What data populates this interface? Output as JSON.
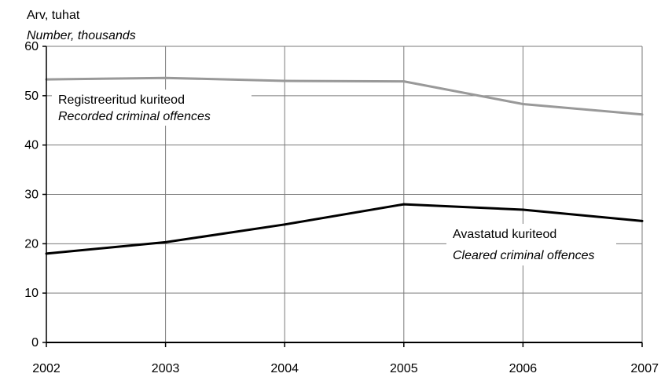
{
  "chart_data": {
    "type": "line",
    "title": "",
    "ylabel_line1": "Arv, tuhat",
    "ylabel_line2": "Number, thousands",
    "x": [
      "2002",
      "2003",
      "2004",
      "2005",
      "2006",
      "2007"
    ],
    "ylim": [
      0,
      60
    ],
    "yticks": [
      0,
      10,
      20,
      30,
      40,
      50,
      60
    ],
    "grid": true,
    "series": [
      {
        "name": "Registreeritud kuriteod",
        "name_en": "Recorded criminal offences",
        "color": "#999999",
        "values": [
          53.3,
          53.6,
          53.0,
          52.9,
          48.3,
          46.2
        ]
      },
      {
        "name": "Avastatud kuriteod",
        "name_en": "Cleared criminal offences",
        "color": "#000000",
        "values": [
          18.0,
          20.3,
          23.9,
          28.0,
          26.9,
          24.6
        ]
      }
    ]
  }
}
